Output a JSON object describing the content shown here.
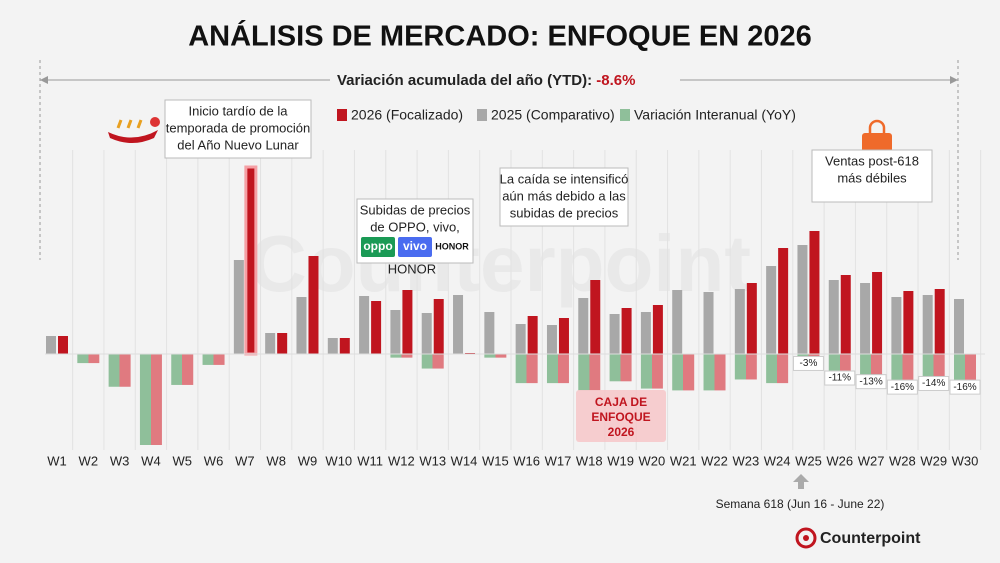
{
  "chart_data": {
    "type": "bar",
    "title": "ANÁLISIS DE MERCADO: ENFOQUE EN 2026",
    "subtitle": "Variación acumulada del año (YTD):",
    "ytd_value": "-8.6%",
    "watermark": "Counterpoint",
    "categories": [
      "W1",
      "W2",
      "W3",
      "W4",
      "W5",
      "W6",
      "W7",
      "W8",
      "W9",
      "W10",
      "W11",
      "W12",
      "W13",
      "W14",
      "W15",
      "W16",
      "W17",
      "W18",
      "W19",
      "W20",
      "W21",
      "W22",
      "W23",
      "W24",
      "W25",
      "W26",
      "W27",
      "W28",
      "W29",
      "W30"
    ],
    "series": [
      {
        "name": "2026 (Focalizado)",
        "color": "#c0151f",
        "values": [
          18,
          null,
          null,
          null,
          null,
          null,
          187,
          21,
          98,
          16,
          53,
          64,
          55,
          1,
          null,
          38,
          36,
          74,
          46,
          49,
          null,
          null,
          71,
          106,
          123,
          79,
          82,
          63,
          65,
          null
        ]
      },
      {
        "name": "2025 (Comparativo)",
        "color": "#a8a8a8",
        "values": [
          18,
          null,
          null,
          null,
          null,
          null,
          94,
          21,
          57,
          16,
          58,
          44,
          41,
          59,
          42,
          30,
          29,
          56,
          40,
          42,
          64,
          62,
          65,
          88,
          109,
          74,
          71,
          57,
          59,
          55
        ]
      },
      {
        "name": "Variación Interanual (YoY)",
        "color": "#8fbf9a",
        "color2": "#e07a80",
        "axis": "y2",
        "values": [
          null,
          -5,
          -18,
          -50,
          -17,
          -6,
          null,
          null,
          null,
          null,
          null,
          -2,
          -8,
          null,
          -2,
          -16,
          -16,
          -20,
          -15,
          -19,
          -20,
          -20,
          -14,
          -16,
          -3,
          -11,
          -13,
          -16,
          -14,
          -16
        ],
        "value_labels": [
          null,
          null,
          null,
          null,
          null,
          null,
          null,
          null,
          null,
          null,
          null,
          null,
          null,
          null,
          null,
          null,
          null,
          null,
          null,
          null,
          null,
          null,
          null,
          null,
          "-3%",
          "-11%",
          "-13%",
          "-16%",
          "-14%",
          "-16%"
        ]
      }
    ],
    "ylim": [
      0,
      200
    ],
    "y2lim": [
      -50,
      0
    ],
    "annotations": [
      {
        "lines": [
          "Inicio tardío de la",
          "temporada de promoción",
          "del Año Nuevo Lunar"
        ]
      },
      {
        "lines": [
          "Subidas de precios",
          "de OPPO, vivo,"
        ],
        "logos": [
          "oppo",
          "vivo",
          "HONOR"
        ],
        "after": "HONOR"
      },
      {
        "lines": [
          "La caída se intensificó",
          "aún más debido a las",
          "subidas de precios"
        ]
      },
      {
        "lines": [
          "Ventas post-618",
          "más débiles"
        ]
      }
    ],
    "focus_box": [
      "CAJA DE",
      "ENFOQUE",
      "2026"
    ],
    "week_note": "Semana 618 (Jun 16 - June 22)",
    "brand": "Counterpoint"
  }
}
